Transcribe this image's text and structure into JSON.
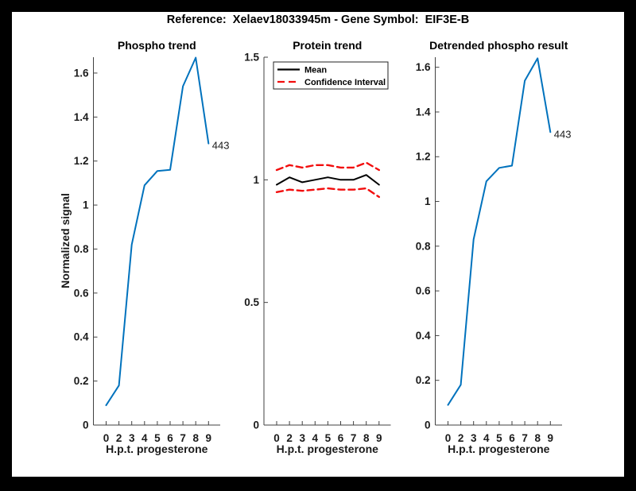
{
  "figure": {
    "title": "Reference:  Xelaev18033945m - Gene Symbol:  EIF3E-B"
  },
  "colors": {
    "background": "#000000",
    "canvas": "#ffffff",
    "phospho_line": "#0072BD",
    "mean_line": "#000000",
    "ci_line": "#f20d0d",
    "axis": "#404040",
    "text": "#1a1a1a"
  },
  "chart_data": [
    {
      "type": "line",
      "title": "Phospho trend",
      "xlabel": "H.p.t. progesterone",
      "ylabel": "Normalized signal",
      "x_categories": [
        "0",
        "2",
        "3",
        "4",
        "5",
        "6",
        "7",
        "8",
        "9"
      ],
      "ylim": [
        0,
        1.672
      ],
      "yticks": [
        0,
        0.2,
        0.4,
        0.6,
        0.8,
        1,
        1.2,
        1.4,
        1.6
      ],
      "grid": false,
      "series": [
        {
          "name": "Phospho signal",
          "color": "#0072BD",
          "style": "solid",
          "width": 2,
          "values": [
            0.09,
            0.18,
            0.82,
            1.09,
            1.155,
            1.16,
            1.54,
            1.67,
            1.28
          ]
        }
      ],
      "end_label": "443"
    },
    {
      "type": "line",
      "title": "Protein trend",
      "xlabel": "H.p.t. progesterone",
      "ylabel": "",
      "x_categories": [
        "0",
        "2",
        "3",
        "4",
        "5",
        "6",
        "7",
        "8",
        "9"
      ],
      "ylim": [
        0,
        1.5
      ],
      "yticks": [
        0,
        0.5,
        1,
        1.5
      ],
      "grid": false,
      "legend_position": "top-left",
      "legend": [
        {
          "label": "Mean",
          "color": "#000000",
          "style": "solid"
        },
        {
          "label": "Confidence Interval",
          "color": "#f20d0d",
          "style": "dashed"
        }
      ],
      "series": [
        {
          "name": "Mean",
          "color": "#000000",
          "style": "solid",
          "width": 2,
          "values": [
            0.98,
            1.01,
            0.99,
            1.0,
            1.01,
            1.0,
            1.0,
            1.02,
            0.98
          ]
        },
        {
          "name": "Confidence Interval upper",
          "color": "#f20d0d",
          "style": "dashed",
          "width": 2.4,
          "values": [
            1.04,
            1.06,
            1.05,
            1.06,
            1.06,
            1.05,
            1.05,
            1.07,
            1.04
          ]
        },
        {
          "name": "Confidence Interval lower",
          "color": "#f20d0d",
          "style": "dashed",
          "width": 2.4,
          "values": [
            0.95,
            0.96,
            0.955,
            0.96,
            0.965,
            0.96,
            0.96,
            0.965,
            0.93
          ]
        }
      ]
    },
    {
      "type": "line",
      "title": "Detrended phospho result",
      "xlabel": "H.p.t. progesterone",
      "ylabel": "",
      "x_categories": [
        "0",
        "2",
        "3",
        "4",
        "5",
        "6",
        "7",
        "8",
        "9"
      ],
      "ylim": [
        0,
        1.645
      ],
      "yticks": [
        0,
        0.2,
        0.4,
        0.6,
        0.8,
        1,
        1.2,
        1.4,
        1.6
      ],
      "grid": false,
      "series": [
        {
          "name": "Detrended phospho signal",
          "color": "#0072BD",
          "style": "solid",
          "width": 2,
          "values": [
            0.09,
            0.18,
            0.83,
            1.09,
            1.15,
            1.16,
            1.54,
            1.64,
            1.31
          ]
        }
      ],
      "end_label": "443"
    }
  ]
}
